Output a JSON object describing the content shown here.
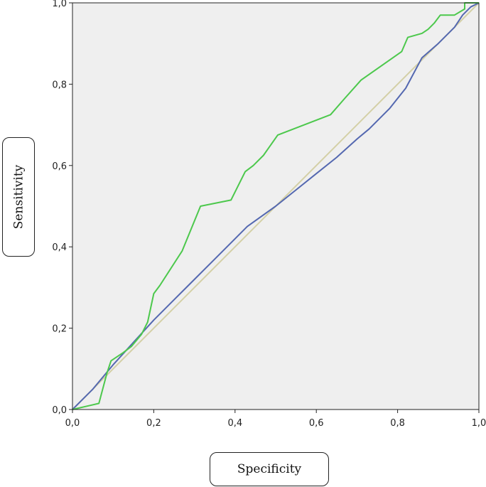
{
  "chart_data": {
    "type": "line",
    "title": "",
    "xlabel": "Specificity",
    "ylabel": "Sensitivity",
    "xlim": [
      0,
      1
    ],
    "ylim": [
      0,
      1
    ],
    "xticks": [
      "0,0",
      "0,2",
      "0,4",
      "0,6",
      "0,8",
      "1,0"
    ],
    "yticks": [
      "0,0",
      "0,2",
      "0,4",
      "0,6",
      "0,8",
      "1,0"
    ],
    "tick_values": [
      0,
      0.2,
      0.4,
      0.6,
      0.8,
      1.0
    ],
    "background": "#efefef",
    "series": [
      {
        "name": "reference",
        "color": "#d4d0a6",
        "x": [
          0,
          1
        ],
        "y": [
          0,
          1
        ]
      },
      {
        "name": "blue",
        "color": "#5468b0",
        "x": [
          0,
          0.05,
          0.1,
          0.15,
          0.2,
          0.25,
          0.3,
          0.35,
          0.4,
          0.43,
          0.5,
          0.55,
          0.6,
          0.65,
          0.7,
          0.73,
          0.78,
          0.82,
          0.86,
          0.9,
          0.94,
          0.96,
          0.98,
          1.0
        ],
        "y": [
          0,
          0.05,
          0.11,
          0.165,
          0.22,
          0.27,
          0.32,
          0.37,
          0.42,
          0.45,
          0.5,
          0.54,
          0.58,
          0.62,
          0.665,
          0.69,
          0.74,
          0.79,
          0.865,
          0.9,
          0.94,
          0.97,
          0.99,
          1.0
        ]
      },
      {
        "name": "green",
        "color": "#4cc84c",
        "x": [
          0,
          0.065,
          0.085,
          0.095,
          0.125,
          0.145,
          0.17,
          0.185,
          0.2,
          0.215,
          0.27,
          0.315,
          0.39,
          0.425,
          0.445,
          0.47,
          0.505,
          0.635,
          0.67,
          0.71,
          0.81,
          0.825,
          0.86,
          0.875,
          0.89,
          0.905,
          0.94,
          0.965,
          0.965,
          1.0
        ],
        "y": [
          0,
          0.015,
          0.09,
          0.12,
          0.14,
          0.155,
          0.185,
          0.215,
          0.285,
          0.305,
          0.39,
          0.5,
          0.515,
          0.585,
          0.6,
          0.625,
          0.675,
          0.725,
          0.765,
          0.81,
          0.88,
          0.915,
          0.925,
          0.935,
          0.95,
          0.97,
          0.97,
          0.985,
          1.0,
          1.0
        ]
      }
    ]
  }
}
